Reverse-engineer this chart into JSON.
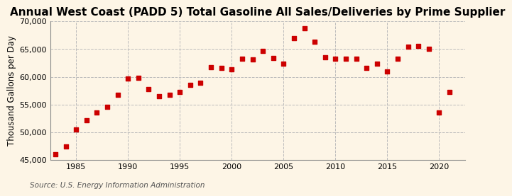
{
  "title": "Annual West Coast (PADD 5) Total Gasoline All Sales/Deliveries by Prime Supplier",
  "ylabel": "Thousand Gallons per Day",
  "source": "Source: U.S. Energy Information Administration",
  "background_color": "#fdf5e6",
  "marker_color": "#cc0000",
  "years": [
    1983,
    1984,
    1985,
    1986,
    1987,
    1988,
    1989,
    1990,
    1991,
    1992,
    1993,
    1994,
    1995,
    1996,
    1997,
    1998,
    1999,
    2000,
    2001,
    2002,
    2003,
    2004,
    2005,
    2006,
    2007,
    2008,
    2009,
    2010,
    2011,
    2012,
    2013,
    2014,
    2015,
    2016,
    2017,
    2018,
    2019,
    2020,
    2021
  ],
  "values": [
    46000,
    47500,
    50500,
    52200,
    53500,
    54600,
    56700,
    59700,
    59800,
    57800,
    56500,
    56700,
    57200,
    58500,
    58900,
    61700,
    61600,
    61400,
    63200,
    63100,
    64700,
    63400,
    62300,
    66900,
    68700,
    66300,
    63500,
    63200,
    63300,
    63200,
    61600,
    62300,
    61000,
    63300,
    65400,
    65500,
    65100,
    53600,
    57200
  ],
  "ylim": [
    45000,
    70000
  ],
  "yticks": [
    45000,
    50000,
    55000,
    60000,
    65000,
    70000
  ],
  "xlim": [
    1982.5,
    2022.5
  ],
  "xticks": [
    1985,
    1990,
    1995,
    2000,
    2005,
    2010,
    2015,
    2020
  ],
  "grid_color": "#bbbbbb",
  "title_fontsize": 11,
  "label_fontsize": 8.5,
  "tick_fontsize": 8,
  "source_fontsize": 7.5
}
